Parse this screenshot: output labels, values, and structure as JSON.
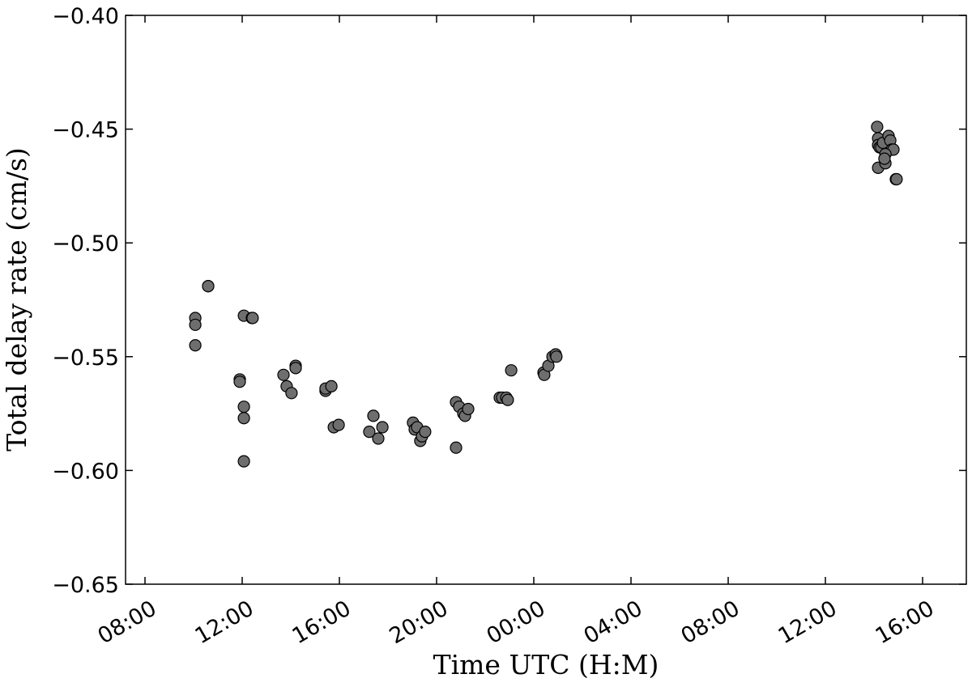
{
  "chart_data": {
    "type": "scatter",
    "xlabel": "Time UTC (H:M)",
    "ylabel": "Total delay rate (cm/s)",
    "color": "#6e6e6e",
    "xlim": [
      7.2,
      41.8
    ],
    "ylim": [
      -0.65,
      -0.4
    ],
    "xticks": [
      {
        "value": 8,
        "label": "08:00"
      },
      {
        "value": 12,
        "label": "12:00"
      },
      {
        "value": 16,
        "label": "16:00"
      },
      {
        "value": 20,
        "label": "20:00"
      },
      {
        "value": 24,
        "label": "00:00"
      },
      {
        "value": 28,
        "label": "04:00"
      },
      {
        "value": 32,
        "label": "08:00"
      },
      {
        "value": 36,
        "label": "12:00"
      },
      {
        "value": 40,
        "label": "16:00"
      }
    ],
    "yticks": [
      {
        "value": -0.65,
        "label": "−0.65"
      },
      {
        "value": -0.6,
        "label": "−0.60"
      },
      {
        "value": -0.55,
        "label": "−0.55"
      },
      {
        "value": -0.5,
        "label": "−0.50"
      },
      {
        "value": -0.45,
        "label": "−0.45"
      },
      {
        "value": -0.4,
        "label": "−0.40"
      }
    ],
    "x": [
      10.07,
      10.07,
      10.07,
      10.6,
      10.6,
      11.9,
      11.9,
      12.07,
      12.07,
      12.07,
      12.07,
      12.4,
      12.43,
      13.7,
      13.83,
      14.03,
      14.2,
      14.2,
      15.43,
      15.43,
      15.67,
      15.77,
      15.97,
      17.23,
      17.4,
      17.6,
      17.77,
      19.03,
      19.1,
      19.2,
      19.33,
      19.4,
      19.53,
      20.8,
      20.8,
      20.93,
      21.1,
      21.17,
      21.3,
      23.07,
      22.6,
      22.7,
      22.87,
      22.93,
      24.4,
      24.43,
      24.6,
      24.77,
      24.9,
      24.93,
      38.13,
      38.17,
      38.17,
      38.17,
      38.23,
      38.3,
      38.37,
      38.47,
      38.6,
      38.67,
      38.73,
      38.8,
      38.9,
      38.93,
      38.47,
      38.43
    ],
    "values": [
      -0.533,
      -0.536,
      -0.545,
      -0.519,
      -0.519,
      -0.56,
      -0.561,
      -0.572,
      -0.577,
      -0.596,
      -0.532,
      -0.533,
      -0.533,
      -0.558,
      -0.563,
      -0.566,
      -0.554,
      -0.555,
      -0.565,
      -0.564,
      -0.563,
      -0.581,
      -0.58,
      -0.583,
      -0.576,
      -0.586,
      -0.581,
      -0.579,
      -0.582,
      -0.581,
      -0.587,
      -0.585,
      -0.583,
      -0.57,
      -0.59,
      -0.572,
      -0.575,
      -0.576,
      -0.573,
      -0.556,
      -0.568,
      -0.568,
      -0.568,
      -0.569,
      -0.557,
      -0.558,
      -0.554,
      -0.55,
      -0.549,
      -0.55,
      -0.449,
      -0.454,
      -0.457,
      -0.467,
      -0.458,
      -0.458,
      -0.456,
      -0.465,
      -0.453,
      -0.455,
      -0.459,
      -0.459,
      -0.472,
      -0.472,
      -0.461,
      -0.463
    ]
  }
}
